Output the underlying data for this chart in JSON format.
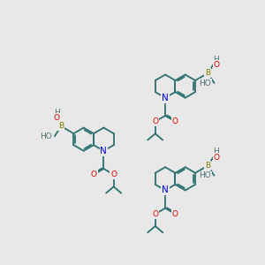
{
  "bg": "#e8e8e8",
  "bond_color": "#2d7070",
  "n_color": "#0000cc",
  "o_color": "#dd0000",
  "b_color": "#808000",
  "ho_color": "#507070",
  "lw": 1.3,
  "fs": 6.5,
  "mol_positions": [
    {
      "ox": 88,
      "oy": 158,
      "sc": 17,
      "mirror": false
    },
    {
      "ox": 208,
      "oy": 80,
      "sc": 17,
      "mirror": true
    },
    {
      "ox": 208,
      "oy": 216,
      "sc": 17,
      "mirror": true
    }
  ]
}
